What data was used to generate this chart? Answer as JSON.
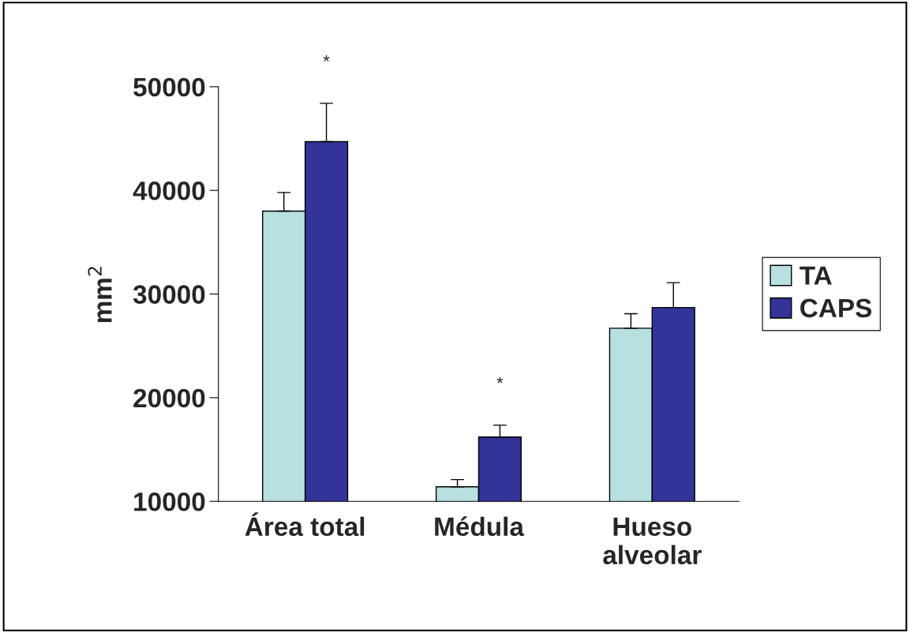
{
  "chart_data": {
    "type": "bar",
    "ylabel": "mm$^{2}$",
    "categories": [
      "Área total",
      "Médula",
      "Hueso\nalveolar"
    ],
    "series": [
      {
        "name": "TA",
        "color": "#b9e0e0",
        "values": [
          38000,
          11400,
          26700
        ],
        "errors": [
          1800,
          700,
          1400
        ]
      },
      {
        "name": "CAPS",
        "color": "#333399",
        "values": [
          44700,
          16200,
          28700
        ],
        "errors": [
          3700,
          1150,
          2400
        ]
      }
    ],
    "ylim": [
      10000,
      50000
    ],
    "yticks": [
      10000,
      20000,
      30000,
      40000,
      50000
    ],
    "grid": false,
    "legend": "right",
    "annotations": [
      "*",
      "*"
    ]
  }
}
